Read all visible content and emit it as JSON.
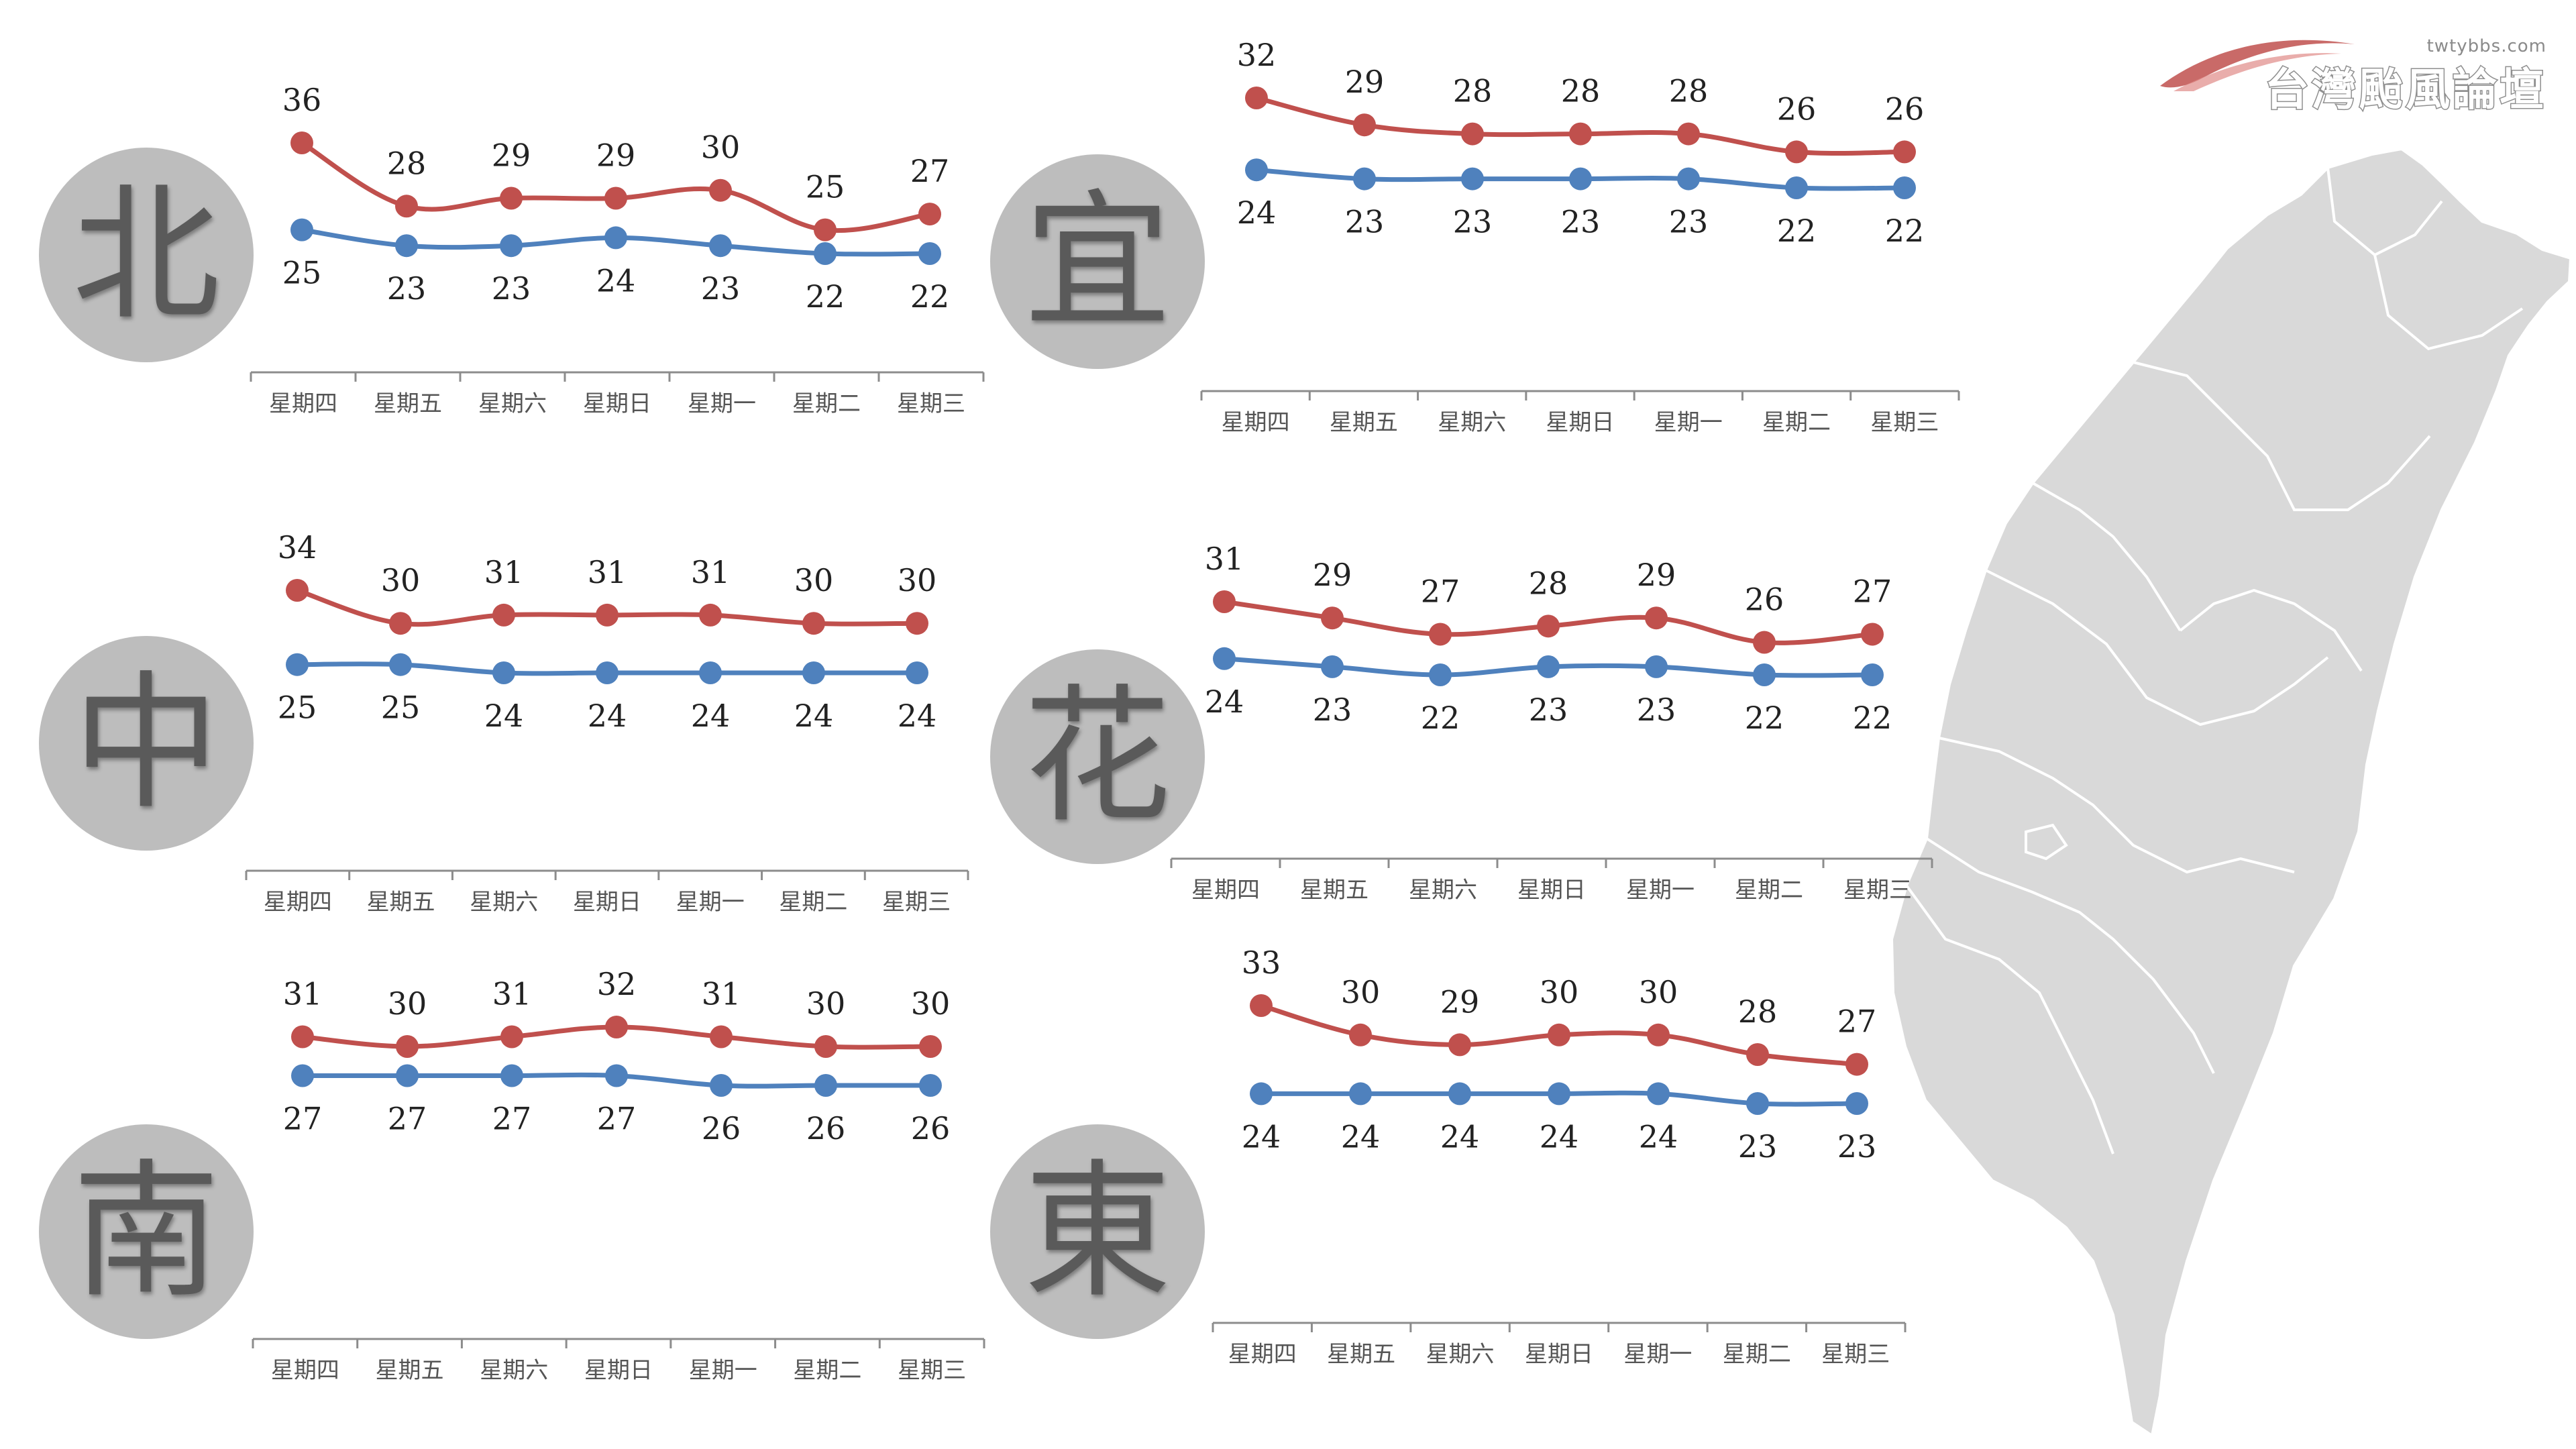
{
  "colors": {
    "high": "#c0504d",
    "low": "#4f81bd",
    "axis": "#8c8c8c",
    "circle": "#bdbdbd",
    "map": "#d9d9d9"
  },
  "logo": {
    "url": "twtybbs.com",
    "title": "台灣颱風論壇"
  },
  "chart_data": [
    {
      "type": "line",
      "region": "北",
      "categories": [
        "星期四",
        "星期五",
        "星期六",
        "星期日",
        "星期一",
        "星期二",
        "星期三"
      ],
      "series": [
        {
          "values": [
            36,
            28,
            29,
            29,
            30,
            25,
            27
          ]
        },
        {
          "values": [
            25,
            23,
            23,
            24,
            23,
            22,
            22
          ]
        }
      ]
    },
    {
      "type": "line",
      "region": "宜",
      "categories": [
        "星期四",
        "星期五",
        "星期六",
        "星期日",
        "星期一",
        "星期二",
        "星期三"
      ],
      "series": [
        {
          "values": [
            32,
            29,
            28,
            28,
            28,
            26,
            26
          ]
        },
        {
          "values": [
            24,
            23,
            23,
            23,
            23,
            22,
            22
          ]
        }
      ]
    },
    {
      "type": "line",
      "region": "中",
      "categories": [
        "星期四",
        "星期五",
        "星期六",
        "星期日",
        "星期一",
        "星期二",
        "星期三"
      ],
      "series": [
        {
          "values": [
            34,
            30,
            31,
            31,
            31,
            30,
            30
          ]
        },
        {
          "values": [
            25,
            25,
            24,
            24,
            24,
            24,
            24
          ]
        }
      ]
    },
    {
      "type": "line",
      "region": "花",
      "categories": [
        "星期四",
        "星期五",
        "星期六",
        "星期日",
        "星期一",
        "星期二",
        "星期三"
      ],
      "series": [
        {
          "values": [
            31,
            29,
            27,
            28,
            29,
            26,
            27
          ]
        },
        {
          "values": [
            24,
            23,
            22,
            23,
            23,
            22,
            22
          ]
        }
      ]
    },
    {
      "type": "line",
      "region": "南",
      "categories": [
        "星期四",
        "星期五",
        "星期六",
        "星期日",
        "星期一",
        "星期二",
        "星期三"
      ],
      "series": [
        {
          "values": [
            31,
            30,
            31,
            32,
            31,
            30,
            30
          ]
        },
        {
          "values": [
            27,
            27,
            27,
            27,
            26,
            26,
            26
          ]
        }
      ]
    },
    {
      "type": "line",
      "region": "東",
      "categories": [
        "星期四",
        "星期五",
        "星期六",
        "星期日",
        "星期一",
        "星期二",
        "星期三"
      ],
      "series": [
        {
          "values": [
            33,
            30,
            29,
            30,
            30,
            28,
            27
          ]
        },
        {
          "values": [
            24,
            24,
            24,
            24,
            24,
            23,
            23
          ]
        }
      ]
    }
  ]
}
